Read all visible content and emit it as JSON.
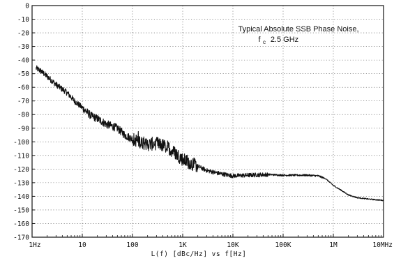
{
  "chart_data": {
    "type": "line",
    "title": "",
    "annotation_line1": "Typical Absolute SSB Phase Noise,",
    "annotation_line2_symbol": "f",
    "annotation_line2_subscript": "c",
    "annotation_line2_value": "2.5 GHz",
    "xlabel": "L(f) [dBc/Hz] vs f[Hz]",
    "ylabel": "",
    "x_scale": "log",
    "xlim": [
      1,
      10000000
    ],
    "ylim": [
      -170,
      0
    ],
    "grid": true,
    "y_ticks": [
      0,
      -10,
      -20,
      -30,
      -40,
      -50,
      -60,
      -70,
      -80,
      -90,
      -100,
      -110,
      -120,
      -130,
      -140,
      -150,
      -160,
      -170
    ],
    "y_tick_labels": [
      "0",
      "-10",
      "-20",
      "-30",
      "-40",
      "-50",
      "-60",
      "-70",
      "-80",
      "-90",
      "-100",
      "-110",
      "-120",
      "-130",
      "-140",
      "-150",
      "-160",
      "-170"
    ],
    "x_ticks": [
      1,
      10,
      100,
      1000,
      10000,
      100000,
      1000000,
      10000000
    ],
    "x_tick_labels": [
      "1Hz",
      "10",
      "100",
      "1K",
      "10K",
      "100K",
      "1M",
      "10MHz"
    ],
    "series": [
      {
        "x": [
          1.2,
          1.5,
          2,
          3,
          5,
          7,
          10,
          15,
          20,
          30,
          50,
          70,
          100,
          150,
          200,
          300,
          500,
          700,
          1000,
          2000,
          3000,
          5000,
          7000,
          10000,
          20000,
          50000,
          100000,
          200000,
          300000,
          500000,
          700000,
          1000000,
          1500000,
          2000000,
          3000000,
          5000000,
          7000000,
          10000000
        ],
        "y": [
          -46,
          -48,
          -52,
          -58,
          -64,
          -70,
          -75,
          -81,
          -83,
          -87,
          -90,
          -95,
          -98,
          -100,
          -102,
          -101,
          -104,
          -108,
          -113,
          -118,
          -121,
          -123,
          -124,
          -125,
          -124.5,
          -124,
          -124.5,
          -124.5,
          -124.5,
          -125,
          -127,
          -132,
          -136,
          -139,
          -141,
          -142,
          -142.5,
          -143
        ]
      }
    ],
    "line_color": "#111111"
  }
}
